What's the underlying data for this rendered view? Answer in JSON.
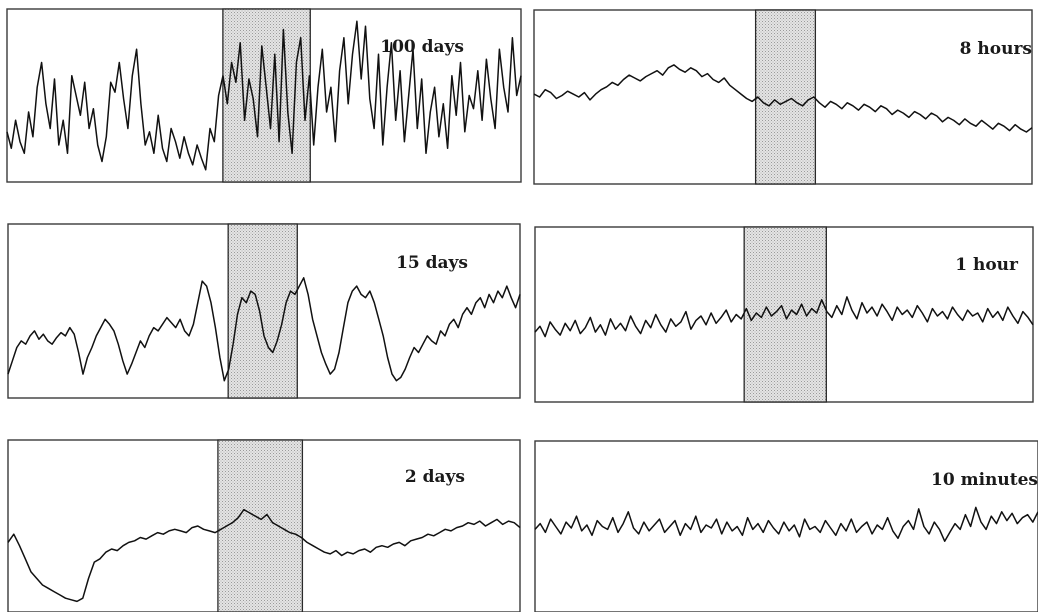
{
  "chart_data": [
    {
      "type": "line",
      "label": "100 days",
      "y": [
        0.28,
        0.18,
        0.35,
        0.22,
        0.15,
        0.4,
        0.25,
        0.55,
        0.7,
        0.45,
        0.3,
        0.6,
        0.2,
        0.35,
        0.15,
        0.62,
        0.5,
        0.38,
        0.58,
        0.3,
        0.42,
        0.2,
        0.1,
        0.25,
        0.58,
        0.52,
        0.7,
        0.48,
        0.3,
        0.62,
        0.78,
        0.45,
        0.2,
        0.28,
        0.15,
        0.38,
        0.18,
        0.1,
        0.3,
        0.22,
        0.12,
        0.25,
        0.15,
        0.08,
        0.2,
        0.12,
        0.05,
        0.3,
        0.22,
        0.5,
        0.62,
        0.45,
        0.7,
        0.58,
        0.82,
        0.35,
        0.6,
        0.48,
        0.25,
        0.8,
        0.55,
        0.3,
        0.75,
        0.22,
        0.9,
        0.4,
        0.15,
        0.7,
        0.85,
        0.35,
        0.62,
        0.2,
        0.55,
        0.78,
        0.4,
        0.55,
        0.22,
        0.65,
        0.85,
        0.45,
        0.75,
        0.95,
        0.6,
        0.92,
        0.48,
        0.3,
        0.75,
        0.2,
        0.55,
        0.82,
        0.35,
        0.65,
        0.22,
        0.5,
        0.78,
        0.3,
        0.6,
        0.15,
        0.4,
        0.55,
        0.25,
        0.45,
        0.18,
        0.62,
        0.38,
        0.7,
        0.28,
        0.5,
        0.42,
        0.65,
        0.35,
        0.72,
        0.48,
        0.3,
        0.78,
        0.55,
        0.4,
        0.85,
        0.5,
        0.62
      ],
      "shaded_range": [
        0.42,
        0.59
      ]
    },
    {
      "type": "line",
      "label": "8 hours",
      "y": [
        0.52,
        0.5,
        0.55,
        0.53,
        0.49,
        0.51,
        0.54,
        0.52,
        0.5,
        0.53,
        0.48,
        0.52,
        0.55,
        0.57,
        0.6,
        0.58,
        0.62,
        0.65,
        0.63,
        0.61,
        0.64,
        0.66,
        0.68,
        0.65,
        0.7,
        0.72,
        0.69,
        0.67,
        0.7,
        0.68,
        0.64,
        0.66,
        0.62,
        0.6,
        0.63,
        0.58,
        0.55,
        0.52,
        0.49,
        0.47,
        0.5,
        0.46,
        0.44,
        0.48,
        0.45,
        0.47,
        0.49,
        0.46,
        0.44,
        0.48,
        0.5,
        0.46,
        0.43,
        0.47,
        0.45,
        0.42,
        0.46,
        0.44,
        0.41,
        0.45,
        0.43,
        0.4,
        0.44,
        0.42,
        0.38,
        0.41,
        0.39,
        0.36,
        0.4,
        0.38,
        0.35,
        0.39,
        0.37,
        0.33,
        0.36,
        0.34,
        0.31,
        0.35,
        0.32,
        0.3,
        0.34,
        0.31,
        0.28,
        0.32,
        0.3,
        0.27,
        0.31,
        0.28,
        0.26,
        0.29
      ],
      "shaded_range": [
        0.445,
        0.565
      ]
    },
    {
      "type": "line",
      "label": "15 days",
      "y": [
        0.12,
        0.2,
        0.28,
        0.32,
        0.3,
        0.35,
        0.38,
        0.33,
        0.36,
        0.32,
        0.3,
        0.34,
        0.37,
        0.35,
        0.4,
        0.36,
        0.25,
        0.12,
        0.22,
        0.28,
        0.35,
        0.4,
        0.45,
        0.42,
        0.38,
        0.3,
        0.2,
        0.12,
        0.18,
        0.25,
        0.32,
        0.28,
        0.35,
        0.4,
        0.38,
        0.42,
        0.46,
        0.43,
        0.4,
        0.45,
        0.38,
        0.35,
        0.42,
        0.55,
        0.68,
        0.65,
        0.55,
        0.4,
        0.22,
        0.08,
        0.15,
        0.3,
        0.48,
        0.58,
        0.55,
        0.62,
        0.6,
        0.5,
        0.35,
        0.28,
        0.25,
        0.32,
        0.42,
        0.55,
        0.62,
        0.6,
        0.65,
        0.7,
        0.6,
        0.45,
        0.35,
        0.25,
        0.18,
        0.12,
        0.15,
        0.25,
        0.4,
        0.55,
        0.62,
        0.65,
        0.6,
        0.58,
        0.62,
        0.55,
        0.45,
        0.35,
        0.22,
        0.12,
        0.08,
        0.1,
        0.15,
        0.22,
        0.28,
        0.25,
        0.3,
        0.35,
        0.32,
        0.3,
        0.38,
        0.35,
        0.42,
        0.45,
        0.4,
        0.48,
        0.52,
        0.48,
        0.55,
        0.58,
        0.52,
        0.6,
        0.55,
        0.62,
        0.58,
        0.65,
        0.58,
        0.52,
        0.6
      ],
      "shaded_range": [
        0.43,
        0.565
      ]
    },
    {
      "type": "line",
      "label": "1 hour",
      "y": [
        0.38,
        0.42,
        0.35,
        0.45,
        0.4,
        0.36,
        0.44,
        0.39,
        0.46,
        0.37,
        0.41,
        0.48,
        0.38,
        0.43,
        0.36,
        0.47,
        0.4,
        0.44,
        0.39,
        0.49,
        0.42,
        0.37,
        0.46,
        0.41,
        0.5,
        0.43,
        0.38,
        0.47,
        0.42,
        0.45,
        0.52,
        0.4,
        0.46,
        0.49,
        0.43,
        0.51,
        0.44,
        0.48,
        0.53,
        0.45,
        0.5,
        0.47,
        0.54,
        0.46,
        0.51,
        0.48,
        0.55,
        0.49,
        0.52,
        0.56,
        0.47,
        0.53,
        0.5,
        0.57,
        0.49,
        0.54,
        0.51,
        0.6,
        0.52,
        0.48,
        0.56,
        0.5,
        0.62,
        0.53,
        0.47,
        0.58,
        0.51,
        0.55,
        0.49,
        0.57,
        0.52,
        0.46,
        0.55,
        0.5,
        0.53,
        0.48,
        0.56,
        0.51,
        0.45,
        0.54,
        0.49,
        0.52,
        0.47,
        0.55,
        0.5,
        0.46,
        0.53,
        0.49,
        0.51,
        0.45,
        0.54,
        0.48,
        0.52,
        0.46,
        0.55,
        0.49,
        0.44,
        0.52,
        0.48,
        0.43
      ],
      "shaded_range": [
        0.42,
        0.585
      ]
    },
    {
      "type": "line",
      "label": "2 days",
      "y": [
        0.4,
        0.45,
        0.38,
        0.3,
        0.22,
        0.18,
        0.14,
        0.12,
        0.1,
        0.08,
        0.06,
        0.05,
        0.04,
        0.06,
        0.18,
        0.28,
        0.3,
        0.34,
        0.36,
        0.35,
        0.38,
        0.4,
        0.41,
        0.43,
        0.42,
        0.44,
        0.46,
        0.45,
        0.47,
        0.48,
        0.47,
        0.46,
        0.49,
        0.5,
        0.48,
        0.47,
        0.46,
        0.48,
        0.5,
        0.52,
        0.55,
        0.6,
        0.58,
        0.56,
        0.54,
        0.57,
        0.52,
        0.5,
        0.48,
        0.46,
        0.45,
        0.43,
        0.4,
        0.38,
        0.36,
        0.34,
        0.33,
        0.35,
        0.32,
        0.34,
        0.33,
        0.35,
        0.36,
        0.34,
        0.37,
        0.38,
        0.37,
        0.39,
        0.4,
        0.38,
        0.41,
        0.42,
        0.43,
        0.45,
        0.44,
        0.46,
        0.48,
        0.47,
        0.49,
        0.5,
        0.52,
        0.51,
        0.53,
        0.5,
        0.52,
        0.54,
        0.51,
        0.53,
        0.52,
        0.49
      ],
      "shaded_range": [
        0.41,
        0.575
      ]
    },
    {
      "type": "line",
      "label": "10 minutes",
      "y": [
        0.48,
        0.52,
        0.46,
        0.55,
        0.5,
        0.45,
        0.53,
        0.49,
        0.57,
        0.47,
        0.51,
        0.44,
        0.54,
        0.5,
        0.48,
        0.56,
        0.46,
        0.52,
        0.6,
        0.49,
        0.45,
        0.53,
        0.47,
        0.51,
        0.55,
        0.46,
        0.5,
        0.54,
        0.44,
        0.52,
        0.48,
        0.57,
        0.46,
        0.51,
        0.49,
        0.55,
        0.45,
        0.53,
        0.47,
        0.5,
        0.44,
        0.56,
        0.48,
        0.52,
        0.46,
        0.54,
        0.49,
        0.45,
        0.53,
        0.47,
        0.51,
        0.43,
        0.55,
        0.48,
        0.5,
        0.46,
        0.54,
        0.49,
        0.44,
        0.52,
        0.47,
        0.55,
        0.46,
        0.5,
        0.53,
        0.45,
        0.51,
        0.48,
        0.56,
        0.47,
        0.42,
        0.5,
        0.54,
        0.48,
        0.62,
        0.5,
        0.45,
        0.53,
        0.48,
        0.4,
        0.46,
        0.52,
        0.48,
        0.58,
        0.5,
        0.63,
        0.53,
        0.48,
        0.57,
        0.52,
        0.6,
        0.54,
        0.59,
        0.52,
        0.56,
        0.58,
        0.53,
        0.6
      ],
      "shaded_range": null
    }
  ]
}
